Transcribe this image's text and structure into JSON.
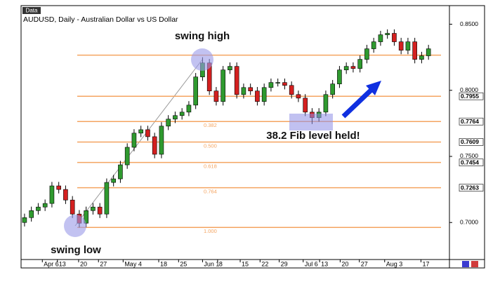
{
  "chart_data": {
    "type": "candlestick",
    "badge": "Data",
    "title": "AUDUSD, Daily - Australian Dollar vs US Dollar",
    "annotations": [
      "swing high",
      "swing low",
      "38.2 Fib level held!"
    ],
    "up_color": "#2f9a2f",
    "down_color": "#d42020",
    "fib_color": "#f4a460",
    "open": [
      0.7,
      0.7037,
      0.709,
      0.7117,
      0.7144,
      0.7277,
      0.725,
      0.717,
      0.7064,
      0.6995,
      0.709,
      0.7117,
      0.7064,
      0.7303,
      0.733,
      0.7436,
      0.7569,
      0.7676,
      0.7702,
      0.7649,
      0.7516,
      0.7729,
      0.7782,
      0.7809,
      0.7835,
      0.7888,
      0.8101,
      0.8207,
      0.7995,
      0.7915,
      0.8154,
      0.8181,
      0.7968,
      0.8021,
      0.7995,
      0.7915,
      0.8021,
      0.8059,
      0.8059,
      0.8037,
      0.7968,
      0.7941,
      0.7835,
      0.7793,
      0.7835,
      0.7968,
      0.8048,
      0.8154,
      0.8181,
      0.8165,
      0.8234,
      0.8314,
      0.8367,
      0.842,
      0.8431,
      0.8367,
      0.8303,
      0.8367,
      0.8234,
      0.8261
    ],
    "high": [
      0.7067,
      0.712,
      0.7147,
      0.7174,
      0.7307,
      0.7307,
      0.728,
      0.72,
      0.7094,
      0.712,
      0.7147,
      0.7147,
      0.7333,
      0.736,
      0.7466,
      0.7599,
      0.7706,
      0.7732,
      0.7732,
      0.7679,
      0.7759,
      0.7812,
      0.7839,
      0.7865,
      0.7918,
      0.8131,
      0.825,
      0.8237,
      0.8025,
      0.8184,
      0.8211,
      0.8211,
      0.8051,
      0.8051,
      0.8025,
      0.8051,
      0.8089,
      0.8089,
      0.8089,
      0.8067,
      0.7998,
      0.7971,
      0.7865,
      0.7865,
      0.7998,
      0.8078,
      0.8184,
      0.8211,
      0.8211,
      0.8264,
      0.8344,
      0.8397,
      0.845,
      0.8461,
      0.8461,
      0.8397,
      0.8397,
      0.8397,
      0.8291,
      0.8344
    ],
    "low": [
      0.697,
      0.7007,
      0.706,
      0.7087,
      0.7114,
      0.722,
      0.714,
      0.7034,
      0.6963,
      0.6965,
      0.706,
      0.7034,
      0.7034,
      0.7273,
      0.73,
      0.7406,
      0.7539,
      0.7646,
      0.7619,
      0.7486,
      0.7486,
      0.7699,
      0.7752,
      0.7779,
      0.7805,
      0.7858,
      0.8071,
      0.7965,
      0.7885,
      0.7885,
      0.8124,
      0.7938,
      0.7938,
      0.7965,
      0.7885,
      0.7885,
      0.7991,
      0.8029,
      0.8007,
      0.7938,
      0.7911,
      0.7805,
      0.7745,
      0.7763,
      0.7805,
      0.7938,
      0.8018,
      0.8124,
      0.8135,
      0.8135,
      0.8204,
      0.8284,
      0.8337,
      0.839,
      0.8337,
      0.8273,
      0.8273,
      0.8204,
      0.8204,
      0.8231
    ],
    "close": [
      0.7037,
      0.709,
      0.7117,
      0.7144,
      0.7277,
      0.725,
      0.717,
      0.7064,
      0.6995,
      0.709,
      0.7117,
      0.7064,
      0.7303,
      0.733,
      0.7436,
      0.7569,
      0.7676,
      0.7702,
      0.7649,
      0.7516,
      0.7729,
      0.7782,
      0.7809,
      0.7835,
      0.7888,
      0.8101,
      0.8207,
      0.7995,
      0.7915,
      0.8154,
      0.8181,
      0.7968,
      0.8021,
      0.7995,
      0.7915,
      0.8021,
      0.8059,
      0.8059,
      0.8037,
      0.7968,
      0.7941,
      0.7835,
      0.7793,
      0.7835,
      0.7968,
      0.8048,
      0.8154,
      0.8181,
      0.8165,
      0.8234,
      0.8314,
      0.8367,
      0.842,
      0.8431,
      0.8367,
      0.8303,
      0.8367,
      0.8234,
      0.8261,
      0.8314
    ],
    "xlim": [
      -0.3,
      62.06
    ],
    "xticks": [
      {
        "value": 2.6,
        "label": "Apr 6"
      },
      {
        "value": 4.8,
        "label": "13"
      },
      {
        "value": 7.9,
        "label": "20"
      },
      {
        "value": 10.8,
        "label": "27"
      },
      {
        "value": 14.4,
        "label": "May 4"
      },
      {
        "value": 19.6,
        "label": "18"
      },
      {
        "value": 22.5,
        "label": "25"
      },
      {
        "value": 26,
        "label": "Jun 1"
      },
      {
        "value": 28.2,
        "label": "8"
      },
      {
        "value": 31.5,
        "label": "15"
      },
      {
        "value": 34.4,
        "label": "22"
      },
      {
        "value": 37.2,
        "label": "29"
      },
      {
        "value": 40.7,
        "label": "Jul 6"
      },
      {
        "value": 43.1,
        "label": "13"
      },
      {
        "value": 46.1,
        "label": "20"
      },
      {
        "value": 48.9,
        "label": "27"
      },
      {
        "value": 52.6,
        "label": "Aug 3"
      },
      {
        "value": 57.9,
        "label": "17"
      }
    ],
    "ylim": [
      0.672,
      0.863
    ],
    "yticks": [
      {
        "value": 0.85,
        "label": "0.8500"
      },
      {
        "value": 0.8,
        "label": "0.8000"
      },
      {
        "value": 0.75,
        "label": "0.7500"
      },
      {
        "value": 0.7,
        "label": "0.7000"
      }
    ],
    "fib_levels": [
      0.8266,
      0.7955,
      0.7764,
      0.7609,
      0.7454,
      0.7263,
      0.6963
    ],
    "fib_ratio_labels": [
      null,
      null,
      "0.382",
      "0.500",
      "0.618",
      "0.764",
      "1.000"
    ],
    "fib_price_labels": [
      null,
      "0.7955",
      "0.7764",
      "0.7609",
      "0.7454",
      "0.7263",
      null
    ]
  }
}
